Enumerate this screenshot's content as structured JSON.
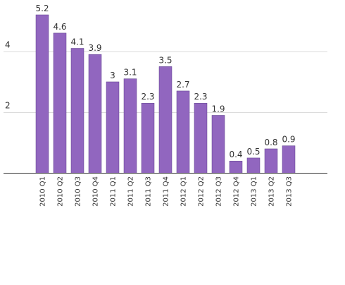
{
  "chart_data": {
    "type": "bar",
    "title": "",
    "xlabel": "",
    "ylabel": "",
    "categories": [
      "2010 Q1",
      "2010 Q2",
      "2010 Q3",
      "2010 Q4",
      "2011 Q1",
      "2011 Q2",
      "2011 Q3",
      "2011 Q4",
      "2012 Q1",
      "2012 Q2",
      "2012 Q3",
      "2012 Q4",
      "2013 Q1",
      "2013 Q2",
      "2013 Q3"
    ],
    "values": [
      5.2,
      4.6,
      4.1,
      3.9,
      3,
      3.1,
      2.3,
      3.5,
      2.7,
      2.3,
      1.9,
      0.4,
      0.5,
      0.8,
      0.9
    ],
    "data_labels": [
      "5.2",
      "4.6",
      "4.1",
      "3.9",
      "3",
      "3.1",
      "2.3",
      "3.5",
      "2.7",
      "2.3",
      "1.9",
      "0.4",
      "0.5",
      "0.8",
      "0.9"
    ],
    "y_ticks": [
      2,
      4
    ],
    "y_tick_labels": [
      "2",
      "4"
    ],
    "ylim": [
      0,
      5.2
    ],
    "grid": true,
    "legend": "none",
    "colors": {
      "bar": "#9166bf",
      "grid": "#dcdcdc",
      "axis": "#333333"
    }
  }
}
